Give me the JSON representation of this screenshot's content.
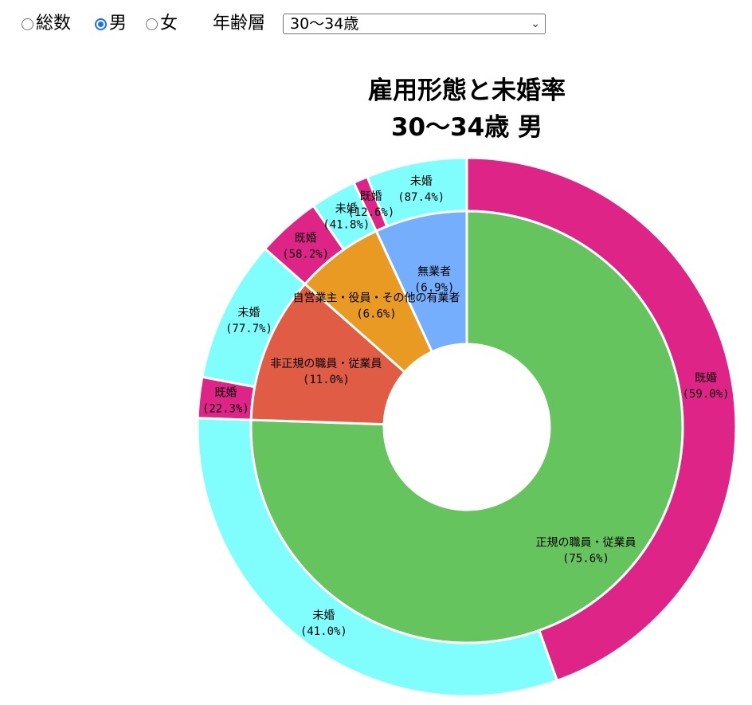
{
  "controls": {
    "radios": [
      {
        "label": "総数",
        "checked": false
      },
      {
        "label": "男",
        "checked": true
      },
      {
        "label": "女",
        "checked": false
      }
    ],
    "age_label": "年齢層",
    "age_select": {
      "value": "30〜34歳"
    }
  },
  "chart_data": {
    "type": "pie",
    "title": "雇用形態と未婚率",
    "subtitle": "30〜34歳 男",
    "inner": [
      {
        "name": "正規の職員・従業員",
        "label": "(75.6%)",
        "value": 75.6,
        "color": "#66c45e"
      },
      {
        "name": "非正規の職員・従業員",
        "label": "(11.0%)",
        "value": 11.0,
        "color": "#e05c45"
      },
      {
        "name": "自営業主・役員・その他の有業者",
        "label": "(6.6%)",
        "value": 6.6,
        "color": "#e89a22"
      },
      {
        "name": "無業者",
        "label": "(6.9%)",
        "value": 6.9,
        "color": "#74aefc"
      }
    ],
    "outer": [
      {
        "parent": 0,
        "name": "既婚",
        "label": "(59.0%)",
        "value": 59.0,
        "color": "#de2486"
      },
      {
        "parent": 0,
        "name": "未婚",
        "label": "(41.0%)",
        "value": 41.0,
        "color": "#80fdfd"
      },
      {
        "parent": 1,
        "name": "既婚",
        "label": "(22.3%)",
        "value": 22.3,
        "color": "#de2486"
      },
      {
        "parent": 1,
        "name": "未婚",
        "label": "(77.7%)",
        "value": 77.7,
        "color": "#80fdfd"
      },
      {
        "parent": 2,
        "name": "既婚",
        "label": "(58.2%)",
        "value": 58.2,
        "color": "#de2486"
      },
      {
        "parent": 2,
        "name": "未婚",
        "label": "(41.8%)",
        "value": 41.8,
        "color": "#80fdfd"
      },
      {
        "parent": 3,
        "name": "既婚",
        "label": "(12.6%)",
        "value": 12.6,
        "color": "#de2486"
      },
      {
        "parent": 3,
        "name": "未婚",
        "label": "(87.4%)",
        "value": 87.4,
        "color": "#80fdfd"
      }
    ]
  }
}
